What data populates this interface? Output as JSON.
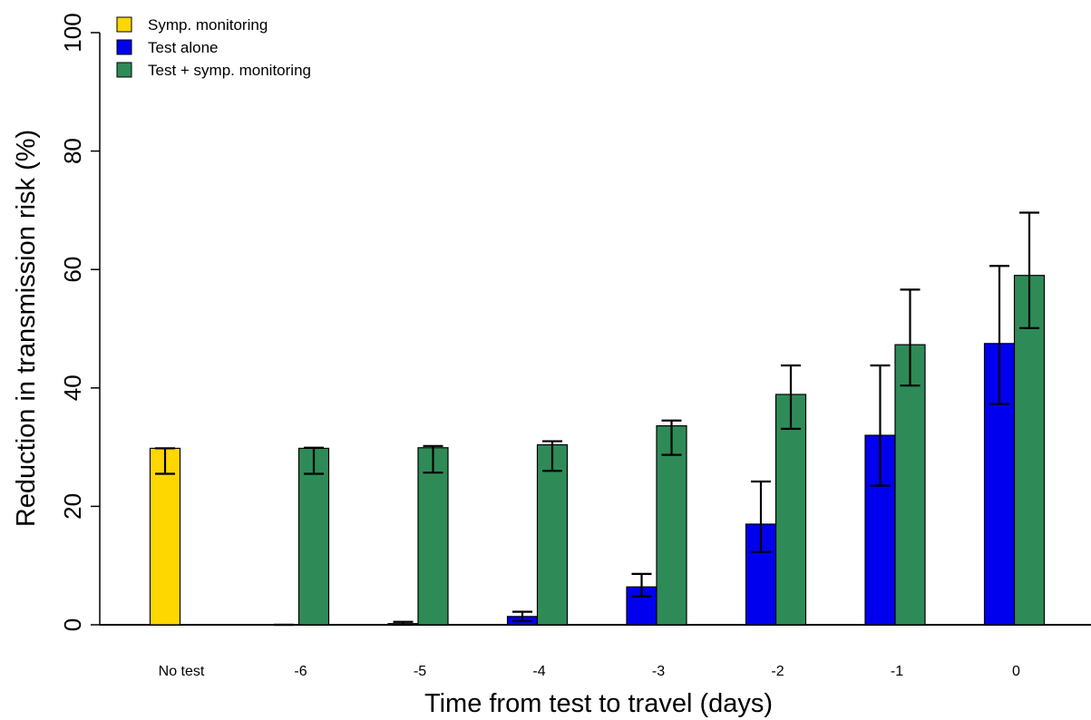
{
  "chart_data": {
    "type": "bar",
    "title": "",
    "xlabel": "Time from test to travel (days)",
    "ylabel": "Reduction in transmission risk (%)",
    "ylim": [
      0,
      100
    ],
    "yticks": [
      0,
      20,
      40,
      60,
      80,
      100
    ],
    "legend_position": "top-left",
    "grid": false,
    "categories": [
      "No test",
      "-6",
      "-5",
      "-4",
      "-3",
      "-2",
      "-1",
      "0"
    ],
    "series": [
      {
        "name": "Symp. monitoring",
        "color": "#FFD700",
        "values": [
          29.8,
          null,
          null,
          null,
          null,
          null,
          null,
          null
        ],
        "lower": [
          25.5,
          null,
          null,
          null,
          null,
          null,
          null,
          null
        ],
        "upper": [
          29.8,
          null,
          null,
          null,
          null,
          null,
          null,
          null
        ]
      },
      {
        "name": "Test alone",
        "color": "#0000EE",
        "values": [
          null,
          0.0,
          0.2,
          1.4,
          6.4,
          17.0,
          32.0,
          47.5
        ],
        "lower": [
          null,
          0.0,
          0.0,
          0.6,
          4.8,
          12.3,
          23.5,
          37.3
        ],
        "upper": [
          null,
          0.0,
          0.5,
          2.2,
          8.6,
          24.2,
          43.8,
          60.6
        ]
      },
      {
        "name": "Test + symp. monitoring",
        "color": "#2E8B57",
        "values": [
          null,
          29.8,
          29.9,
          30.4,
          33.6,
          38.9,
          47.3,
          59.0
        ],
        "lower": [
          null,
          25.5,
          25.7,
          26.0,
          28.7,
          33.1,
          40.4,
          50.1
        ],
        "upper": [
          null,
          29.9,
          30.2,
          31.0,
          34.5,
          43.8,
          56.6,
          69.6
        ]
      }
    ]
  }
}
